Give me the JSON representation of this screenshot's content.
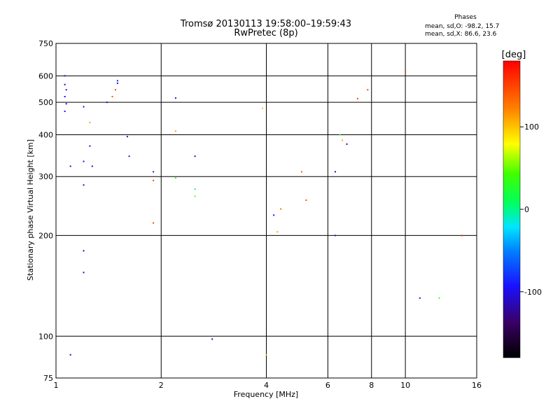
{
  "header": {
    "title_line1": "Tromsø 20130113 19:58:00–19:59:43",
    "title_line2": "RwPretec (8p)",
    "stats_title": "Phases",
    "stats_o": "mean, sd,O: -98.2, 15.7",
    "stats_x": "mean, sd,X:  86.6, 23.6"
  },
  "chart_data": {
    "type": "scatter",
    "xlabel": "Frequency [MHz]",
    "ylabel": "Stationary phase Virtual Height [km]",
    "xscale": "log",
    "yscale": "log",
    "xlim": [
      1,
      16
    ],
    "ylim": [
      75,
      750
    ],
    "x_ticks": [
      1,
      2,
      4,
      6,
      8,
      10,
      16
    ],
    "y_ticks": [
      75,
      100,
      200,
      300,
      400,
      500,
      600,
      750
    ],
    "x_gridlines": [
      2,
      4,
      6,
      8,
      10
    ],
    "y_gridlines": [
      100,
      200,
      300,
      400,
      500,
      600
    ],
    "colorbar": {
      "label": "[deg]",
      "range": [
        -180,
        180
      ],
      "ticks": [
        100,
        0,
        -100
      ]
    },
    "points": [
      [
        1.06,
        600,
        -110
      ],
      [
        1.06,
        565,
        -115
      ],
      [
        1.07,
        545,
        -100
      ],
      [
        1.06,
        520,
        -105
      ],
      [
        1.07,
        495,
        -110
      ],
      [
        1.06,
        470,
        -95
      ],
      [
        1.1,
        88,
        -105
      ],
      [
        1.1,
        322,
        -110
      ],
      [
        1.2,
        485,
        -105
      ],
      [
        1.2,
        333,
        -100
      ],
      [
        1.2,
        283,
        -110
      ],
      [
        1.25,
        370,
        -100
      ],
      [
        1.27,
        322,
        -115
      ],
      [
        1.2,
        180,
        -110
      ],
      [
        1.2,
        155,
        -110
      ],
      [
        1.25,
        435,
        110
      ],
      [
        1.4,
        500,
        -110
      ],
      [
        1.45,
        520,
        140
      ],
      [
        1.48,
        545,
        150
      ],
      [
        1.5,
        580,
        -110
      ],
      [
        1.5,
        570,
        -110
      ],
      [
        1.6,
        395,
        -110
      ],
      [
        1.62,
        345,
        -105
      ],
      [
        1.9,
        310,
        -100
      ],
      [
        1.9,
        292,
        150
      ],
      [
        1.9,
        218,
        150
      ],
      [
        2.2,
        515,
        -110
      ],
      [
        2.2,
        410,
        110
      ],
      [
        2.2,
        297,
        40
      ],
      [
        2.5,
        345,
        -105
      ],
      [
        2.5,
        275,
        -10
      ],
      [
        2.5,
        262,
        50
      ],
      [
        3.9,
        480,
        100
      ],
      [
        4.2,
        230,
        -100
      ],
      [
        4.4,
        240,
        130
      ],
      [
        4.3,
        205,
        110
      ],
      [
        4.0,
        88,
        100
      ],
      [
        5.2,
        255,
        150
      ],
      [
        5.05,
        310,
        140
      ],
      [
        6.3,
        310,
        -110
      ],
      [
        6.3,
        200,
        -105
      ],
      [
        7.3,
        513,
        150
      ],
      [
        7.8,
        545,
        150
      ],
      [
        10.0,
        617,
        150
      ],
      [
        11.0,
        130,
        -105
      ],
      [
        12.5,
        130,
        40
      ],
      [
        14.5,
        200,
        160
      ],
      [
        2.8,
        98,
        -110
      ],
      [
        6.8,
        375,
        -110
      ],
      [
        6.6,
        385,
        110
      ],
      [
        6.5,
        400,
        20
      ]
    ]
  }
}
